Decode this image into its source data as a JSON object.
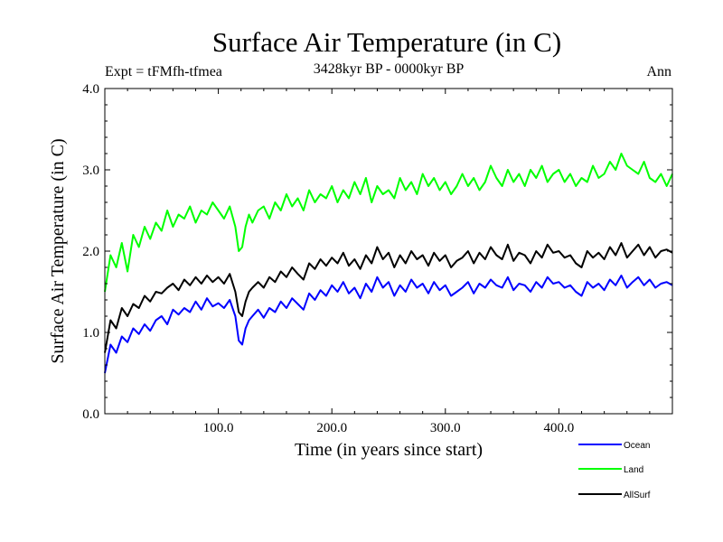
{
  "chart_data": {
    "type": "line",
    "title": "Surface Air Temperature (in C)",
    "subtitle": "3428kyr BP - 0000kyr BP",
    "left_annotation": "Expt = tFMfh-tfmea",
    "right_annotation": "Ann",
    "xlabel": "Time (in years since start)",
    "ylabel": "Surface Air Temperature (in C)",
    "xlim": [
      0,
      500
    ],
    "ylim": [
      0,
      4
    ],
    "x_ticks": [
      100,
      200,
      300,
      400
    ],
    "x_tick_labels": [
      "100.0",
      "200.0",
      "300.0",
      "400.0"
    ],
    "y_ticks": [
      0,
      1,
      2,
      3,
      4
    ],
    "y_tick_labels": [
      "0.0",
      "1.0",
      "2.0",
      "3.0",
      "4.0"
    ],
    "legend_position": "bottom-right, outside plot",
    "series": [
      {
        "name": "Ocean",
        "color": "#0000ff",
        "x": [
          0,
          5,
          10,
          15,
          20,
          25,
          30,
          35,
          40,
          45,
          50,
          55,
          60,
          65,
          70,
          75,
          80,
          85,
          90,
          95,
          100,
          105,
          110,
          115,
          118,
          121,
          124,
          127,
          130,
          135,
          140,
          145,
          150,
          155,
          160,
          165,
          170,
          175,
          180,
          185,
          190,
          195,
          200,
          205,
          210,
          215,
          220,
          225,
          230,
          235,
          240,
          245,
          250,
          255,
          260,
          265,
          270,
          275,
          280,
          285,
          290,
          295,
          300,
          305,
          310,
          315,
          320,
          325,
          330,
          335,
          340,
          345,
          350,
          355,
          360,
          365,
          370,
          375,
          380,
          385,
          390,
          395,
          400,
          405,
          410,
          415,
          420,
          425,
          430,
          435,
          440,
          445,
          450,
          455,
          460,
          465,
          470,
          475,
          480,
          485,
          490,
          495,
          500
        ],
        "values": [
          0.5,
          0.85,
          0.75,
          0.95,
          0.88,
          1.05,
          0.98,
          1.1,
          1.02,
          1.15,
          1.2,
          1.1,
          1.28,
          1.22,
          1.3,
          1.25,
          1.38,
          1.28,
          1.42,
          1.32,
          1.36,
          1.3,
          1.4,
          1.2,
          0.9,
          0.85,
          1.05,
          1.15,
          1.2,
          1.28,
          1.18,
          1.3,
          1.25,
          1.38,
          1.3,
          1.42,
          1.35,
          1.28,
          1.48,
          1.4,
          1.52,
          1.45,
          1.58,
          1.5,
          1.62,
          1.48,
          1.55,
          1.42,
          1.6,
          1.5,
          1.68,
          1.55,
          1.62,
          1.45,
          1.58,
          1.5,
          1.65,
          1.55,
          1.6,
          1.48,
          1.62,
          1.52,
          1.58,
          1.45,
          1.5,
          1.55,
          1.62,
          1.48,
          1.6,
          1.55,
          1.65,
          1.58,
          1.55,
          1.68,
          1.52,
          1.6,
          1.58,
          1.5,
          1.62,
          1.55,
          1.68,
          1.6,
          1.62,
          1.55,
          1.58,
          1.5,
          1.45,
          1.62,
          1.55,
          1.6,
          1.52,
          1.65,
          1.58,
          1.7,
          1.55,
          1.62,
          1.68,
          1.58,
          1.65,
          1.55,
          1.6,
          1.62,
          1.58
        ]
      },
      {
        "name": "Land",
        "color": "#00ff00",
        "x": [
          0,
          5,
          10,
          15,
          20,
          25,
          30,
          35,
          40,
          45,
          50,
          55,
          60,
          65,
          70,
          75,
          80,
          85,
          90,
          95,
          100,
          105,
          110,
          115,
          118,
          121,
          124,
          127,
          130,
          135,
          140,
          145,
          150,
          155,
          160,
          165,
          170,
          175,
          180,
          185,
          190,
          195,
          200,
          205,
          210,
          215,
          220,
          225,
          230,
          235,
          240,
          245,
          250,
          255,
          260,
          265,
          270,
          275,
          280,
          285,
          290,
          295,
          300,
          305,
          310,
          315,
          320,
          325,
          330,
          335,
          340,
          345,
          350,
          355,
          360,
          365,
          370,
          375,
          380,
          385,
          390,
          395,
          400,
          405,
          410,
          415,
          420,
          425,
          430,
          435,
          440,
          445,
          450,
          455,
          460,
          465,
          470,
          475,
          480,
          485,
          490,
          495,
          500
        ],
        "values": [
          1.5,
          1.95,
          1.8,
          2.1,
          1.75,
          2.2,
          2.05,
          2.3,
          2.15,
          2.35,
          2.25,
          2.5,
          2.3,
          2.45,
          2.4,
          2.55,
          2.35,
          2.5,
          2.45,
          2.6,
          2.5,
          2.4,
          2.55,
          2.3,
          2.0,
          2.05,
          2.3,
          2.45,
          2.35,
          2.5,
          2.55,
          2.4,
          2.6,
          2.5,
          2.7,
          2.55,
          2.65,
          2.5,
          2.75,
          2.6,
          2.7,
          2.65,
          2.8,
          2.6,
          2.75,
          2.65,
          2.85,
          2.7,
          2.9,
          2.6,
          2.8,
          2.7,
          2.75,
          2.65,
          2.9,
          2.75,
          2.85,
          2.7,
          2.95,
          2.8,
          2.9,
          2.75,
          2.85,
          2.7,
          2.8,
          2.95,
          2.8,
          2.9,
          2.75,
          2.85,
          3.05,
          2.9,
          2.8,
          3.0,
          2.85,
          2.95,
          2.8,
          3.0,
          2.9,
          3.05,
          2.85,
          2.95,
          3.0,
          2.85,
          2.95,
          2.8,
          2.9,
          2.85,
          3.05,
          2.9,
          2.95,
          3.1,
          3.0,
          3.2,
          3.05,
          3.0,
          2.95,
          3.1,
          2.9,
          2.85,
          2.95,
          2.8,
          2.95
        ]
      },
      {
        "name": "AllSurf",
        "color": "#000000",
        "x": [
          0,
          5,
          10,
          15,
          20,
          25,
          30,
          35,
          40,
          45,
          50,
          55,
          60,
          65,
          70,
          75,
          80,
          85,
          90,
          95,
          100,
          105,
          110,
          115,
          118,
          121,
          124,
          127,
          130,
          135,
          140,
          145,
          150,
          155,
          160,
          165,
          170,
          175,
          180,
          185,
          190,
          195,
          200,
          205,
          210,
          215,
          220,
          225,
          230,
          235,
          240,
          245,
          250,
          255,
          260,
          265,
          270,
          275,
          280,
          285,
          290,
          295,
          300,
          305,
          310,
          315,
          320,
          325,
          330,
          335,
          340,
          345,
          350,
          355,
          360,
          365,
          370,
          375,
          380,
          385,
          390,
          395,
          400,
          405,
          410,
          415,
          420,
          425,
          430,
          435,
          440,
          445,
          450,
          455,
          460,
          465,
          470,
          475,
          480,
          485,
          490,
          495,
          500
        ],
        "values": [
          0.75,
          1.15,
          1.05,
          1.3,
          1.2,
          1.35,
          1.3,
          1.45,
          1.38,
          1.5,
          1.48,
          1.55,
          1.6,
          1.52,
          1.65,
          1.58,
          1.68,
          1.6,
          1.7,
          1.62,
          1.68,
          1.6,
          1.72,
          1.5,
          1.25,
          1.2,
          1.38,
          1.5,
          1.55,
          1.62,
          1.55,
          1.68,
          1.62,
          1.75,
          1.68,
          1.8,
          1.72,
          1.65,
          1.85,
          1.78,
          1.9,
          1.82,
          1.92,
          1.85,
          1.98,
          1.82,
          1.9,
          1.78,
          1.95,
          1.85,
          2.05,
          1.9,
          1.98,
          1.8,
          1.95,
          1.85,
          2.0,
          1.9,
          1.95,
          1.82,
          1.98,
          1.88,
          1.95,
          1.8,
          1.88,
          1.92,
          2.0,
          1.85,
          1.98,
          1.9,
          2.05,
          1.95,
          1.9,
          2.08,
          1.88,
          1.98,
          1.95,
          1.85,
          2.0,
          1.92,
          2.08,
          1.98,
          2.0,
          1.92,
          1.95,
          1.85,
          1.8,
          2.0,
          1.92,
          1.98,
          1.9,
          2.05,
          1.95,
          2.1,
          1.92,
          2.0,
          2.08,
          1.95,
          2.05,
          1.92,
          2.0,
          2.02,
          1.98
        ]
      }
    ]
  }
}
